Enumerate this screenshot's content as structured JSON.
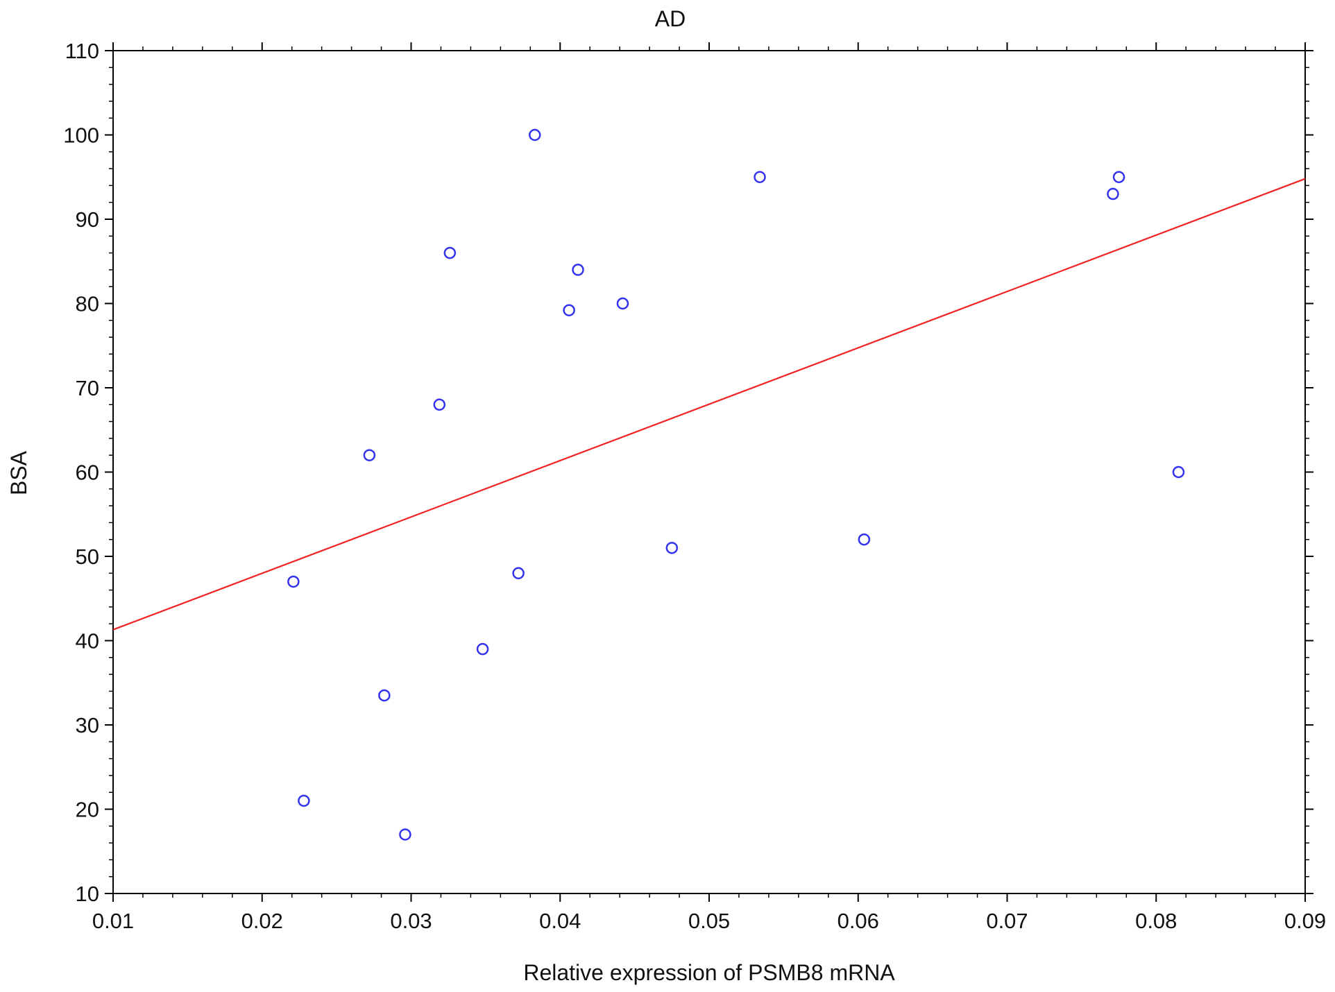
{
  "chart_data": {
    "type": "scatter",
    "title": "AD",
    "xlabel": "Relative expression of PSMB8 mRNA",
    "ylabel": "BSA",
    "xlim": [
      0.01,
      0.09
    ],
    "ylim": [
      10,
      110
    ],
    "xticks": [
      "0.01",
      "0.02",
      "0.03",
      "0.04",
      "0.05",
      "0.06",
      "0.07",
      "0.08",
      "0.09"
    ],
    "yticks": [
      "10",
      "20",
      "30",
      "40",
      "50",
      "60",
      "70",
      "80",
      "90",
      "100",
      "110"
    ],
    "grid": false,
    "colors": {
      "points": "#3333ee",
      "fit": "#ee2222",
      "frame": "#000000"
    },
    "points": [
      {
        "x": 0.0221,
        "y": 47
      },
      {
        "x": 0.0228,
        "y": 21
      },
      {
        "x": 0.0272,
        "y": 62
      },
      {
        "x": 0.0282,
        "y": 33.5
      },
      {
        "x": 0.0296,
        "y": 17
      },
      {
        "x": 0.0319,
        "y": 68
      },
      {
        "x": 0.0326,
        "y": 86
      },
      {
        "x": 0.0348,
        "y": 39
      },
      {
        "x": 0.0372,
        "y": 48
      },
      {
        "x": 0.0383,
        "y": 100
      },
      {
        "x": 0.0406,
        "y": 79.2
      },
      {
        "x": 0.0412,
        "y": 84
      },
      {
        "x": 0.0442,
        "y": 80
      },
      {
        "x": 0.0475,
        "y": 51
      },
      {
        "x": 0.0534,
        "y": 95
      },
      {
        "x": 0.0604,
        "y": 52
      },
      {
        "x": 0.0771,
        "y": 93
      },
      {
        "x": 0.0775,
        "y": 95
      },
      {
        "x": 0.0815,
        "y": 60
      }
    ],
    "fit_line": {
      "x": [
        0.01,
        0.09
      ],
      "y": [
        41.3,
        94.8
      ]
    }
  }
}
